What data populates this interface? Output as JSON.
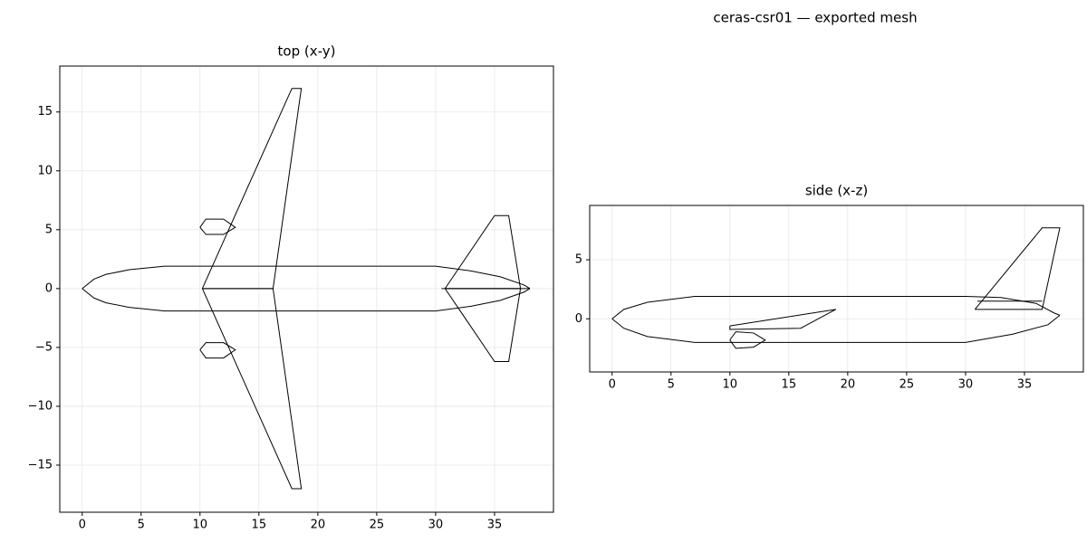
{
  "suptitle": "ceras-csr01 — exported mesh",
  "chart_data": [
    {
      "type": "line",
      "title": "top (x-y)",
      "grid": true,
      "xlim": [
        -1.9,
        40
      ],
      "ylim": [
        -19,
        18.9
      ],
      "xticks": [
        0,
        5,
        10,
        15,
        20,
        25,
        30,
        35
      ],
      "yticks": [
        {
          "value": -15,
          "label": "−15"
        },
        {
          "value": -10,
          "label": "−10"
        },
        {
          "value": -5,
          "label": "−5"
        },
        0,
        5,
        10,
        15
      ],
      "series": [
        {
          "color": "#000000",
          "x": [
            0,
            1,
            2,
            4,
            7,
            30,
            33,
            35.5,
            37.5,
            38
          ],
          "values": [
            0,
            0.8,
            1.2,
            1.6,
            1.9,
            1.9,
            1.5,
            1.0,
            0.3,
            0
          ]
        },
        {
          "color": "#000000",
          "x": [
            0,
            1,
            2,
            4,
            7,
            30,
            33,
            35.5,
            37.5,
            38
          ],
          "values": [
            0,
            -0.8,
            -1.2,
            -1.6,
            -1.9,
            -1.9,
            -1.5,
            -1.0,
            -0.3,
            0
          ]
        },
        {
          "color": "#000000",
          "x": [
            10.2,
            17.8,
            18.6,
            16.2,
            10.2
          ],
          "values": [
            0,
            17,
            17,
            0,
            0
          ]
        },
        {
          "color": "#000000",
          "x": [
            10.2,
            17.8,
            18.6,
            16.2,
            10.2
          ],
          "values": [
            0,
            -17,
            -17,
            0,
            0
          ]
        },
        {
          "color": "#000000",
          "x": [
            30.8,
            35,
            36.2,
            37.2,
            30.8
          ],
          "values": [
            0,
            6.2,
            6.2,
            0,
            0
          ]
        },
        {
          "color": "#000000",
          "x": [
            30.8,
            35,
            36.2,
            37.2,
            30.8
          ],
          "values": [
            0,
            -6.2,
            -6.2,
            0,
            0
          ]
        },
        {
          "color": "#000000",
          "x": [
            10,
            10.5,
            12,
            13,
            12,
            10.5,
            10
          ],
          "values": [
            5.2,
            5.9,
            5.9,
            5.2,
            4.6,
            4.6,
            5.2
          ]
        },
        {
          "color": "#000000",
          "x": [
            10,
            10.5,
            12,
            13,
            12,
            10.5,
            10
          ],
          "values": [
            -5.2,
            -4.6,
            -4.6,
            -5.2,
            -5.9,
            -5.9,
            -5.2
          ]
        },
        {
          "color": "#000000",
          "x": [
            30.5,
            38
          ],
          "values": [
            0,
            0
          ]
        }
      ]
    },
    {
      "type": "line",
      "title": "side (x-z)",
      "grid": true,
      "xlim": [
        -1.9,
        40
      ],
      "ylim": [
        -4.5,
        9.6
      ],
      "xticks": [
        0,
        5,
        10,
        15,
        20,
        25,
        30,
        35
      ],
      "yticks": [
        0,
        5
      ],
      "series": [
        {
          "color": "#000000",
          "x": [
            0,
            1,
            3,
            7,
            30,
            33,
            36,
            37.5,
            38
          ],
          "values": [
            0,
            0.8,
            1.4,
            1.9,
            1.9,
            1.8,
            1.3,
            0.5,
            0.3
          ]
        },
        {
          "color": "#000000",
          "x": [
            0,
            1,
            3,
            7,
            30,
            34,
            37,
            38
          ],
          "values": [
            0,
            -0.8,
            -1.5,
            -2.0,
            -2.0,
            -1.3,
            -0.5,
            0.3
          ]
        },
        {
          "color": "#000000",
          "x": [
            30.8,
            36.5,
            38,
            36.5,
            30.8
          ],
          "values": [
            0.8,
            7.7,
            7.7,
            0.8,
            0.8
          ]
        },
        {
          "color": "#000000",
          "x": [
            31,
            36.5
          ],
          "values": [
            1.5,
            1.5
          ]
        },
        {
          "color": "#000000",
          "x": [
            10,
            19,
            16,
            10,
            10
          ],
          "values": [
            -0.6,
            0.8,
            -0.8,
            -0.9,
            -0.6
          ]
        },
        {
          "color": "#000000",
          "x": [
            10,
            10.5,
            12,
            13,
            12,
            10.5,
            10
          ],
          "values": [
            -1.8,
            -1.1,
            -1.2,
            -1.8,
            -2.4,
            -2.5,
            -1.8
          ]
        }
      ]
    }
  ]
}
